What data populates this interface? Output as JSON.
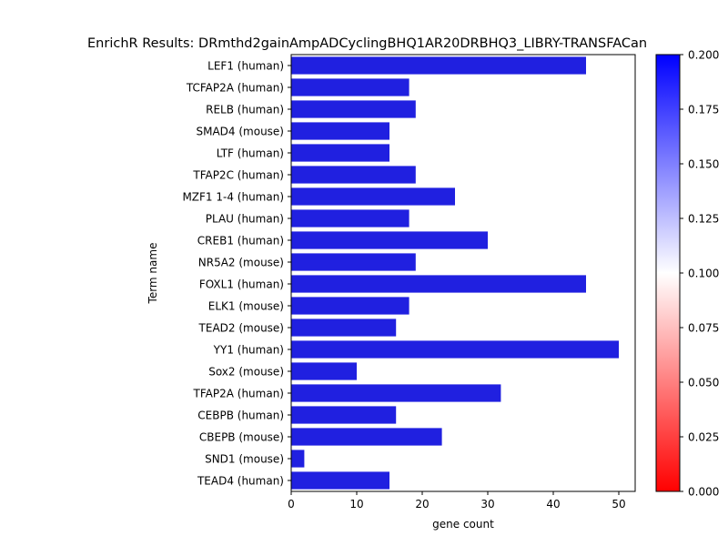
{
  "chart_data": {
    "type": "bar",
    "orientation": "horizontal",
    "title": "EnrichR Results: DRmthd2gainAmpADCyclingBHQ1AR20DRBHQ3_LIBRY-TRANSFACan",
    "xlabel": "gene count",
    "ylabel": "Term name",
    "xlim": [
      0,
      52.5
    ],
    "xticks": [
      0,
      10,
      20,
      30,
      40,
      50
    ],
    "grid": false,
    "categories": [
      "LEF1 (human)",
      "TCFAP2A (human)",
      "RELB (human)",
      "SMAD4 (mouse)",
      "LTF (human)",
      "TFAP2C (human)",
      "MZF1 1-4 (human)",
      "PLAU (human)",
      "CREB1 (human)",
      "NR5A2 (mouse)",
      "FOXL1 (human)",
      "ELK1 (mouse)",
      "TEAD2 (mouse)",
      "YY1 (human)",
      "Sox2 (mouse)",
      "TFAP2A (human)",
      "CEBPB (human)",
      "CBEPB (mouse)",
      "SND1 (mouse)",
      "TEAD4 (human)"
    ],
    "values": [
      45,
      18,
      19,
      15,
      15,
      19,
      25,
      18,
      30,
      19,
      45,
      18,
      16,
      50,
      10,
      32,
      16,
      23,
      2,
      15
    ],
    "bar_color": "#2020e0",
    "colorbar": {
      "range": [
        0.0,
        0.2
      ],
      "ticks": [
        "0.000",
        "0.025",
        "0.050",
        "0.075",
        "0.100",
        "0.125",
        "0.150",
        "0.175",
        "0.200"
      ],
      "colors": {
        "low": "#ff0000",
        "mid": "#ffffff",
        "high": "#0000ff"
      }
    }
  }
}
